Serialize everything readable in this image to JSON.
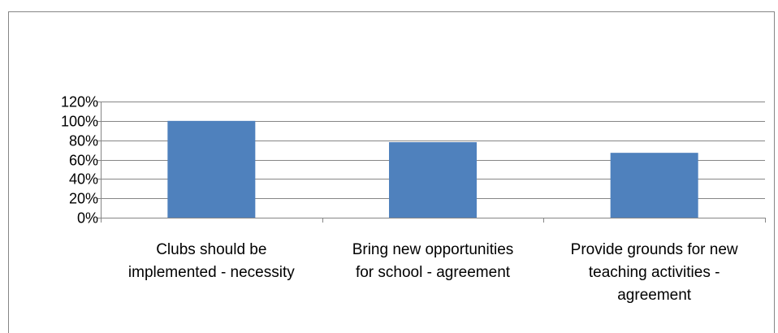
{
  "chart_data": {
    "type": "bar",
    "categories": [
      "Clubs should be implemented - necessity",
      "Bring new opportunities for school - agreement",
      "Provide grounds for new teaching activities - agreement"
    ],
    "category_lines": [
      [
        "Clubs should be",
        "implemented - necessity"
      ],
      [
        "Bring new opportunities",
        "for school - agreement"
      ],
      [
        "Provide grounds for new",
        "teaching activities -",
        "agreement"
      ]
    ],
    "values": [
      1.0,
      0.78,
      0.67
    ],
    "ylim": [
      0,
      1.2
    ],
    "yticks": [
      0,
      0.2,
      0.4,
      0.6,
      0.8,
      1.0,
      1.2
    ],
    "ytick_labels": [
      "0%",
      "20%",
      "40%",
      "60%",
      "80%",
      "100%",
      "120%"
    ],
    "grid": true,
    "legend": "none",
    "bar_color": "#4F81BD",
    "grid_color": "#868686"
  }
}
